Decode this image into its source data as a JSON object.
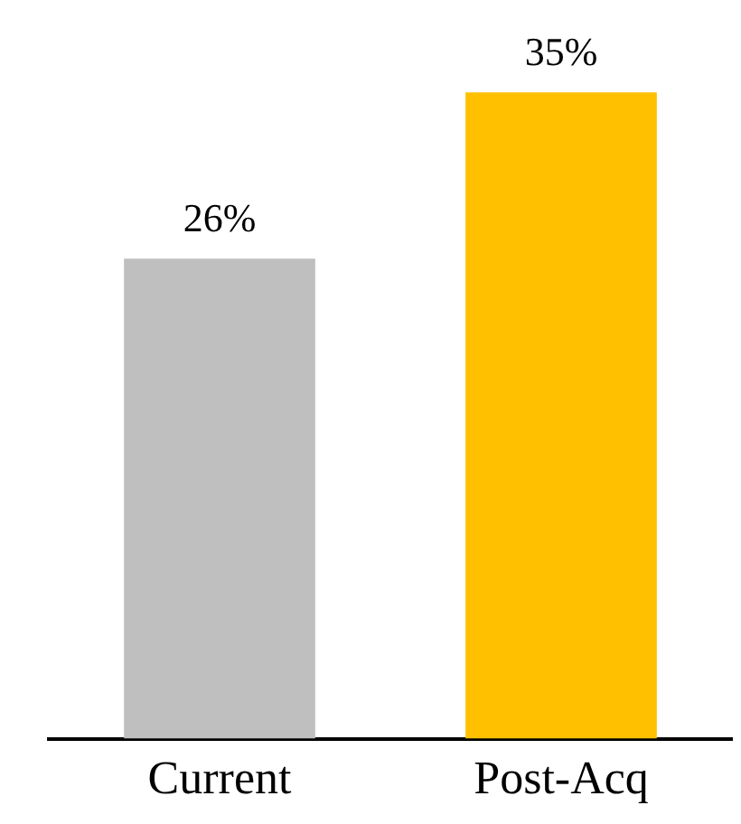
{
  "chart_data": {
    "type": "bar",
    "categories": [
      "Current",
      "Post-Acq"
    ],
    "values": [
      26,
      35
    ],
    "colors": [
      "#bfbfbf",
      "#ffc000"
    ],
    "data_labels": true,
    "value_labels": [
      "26%",
      "35%"
    ]
  }
}
